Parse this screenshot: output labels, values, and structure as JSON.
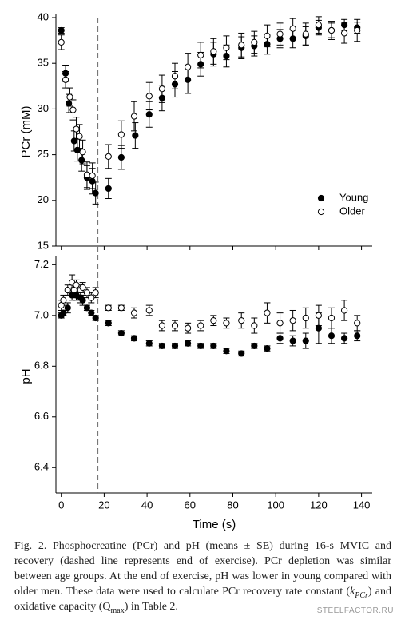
{
  "chart_data": [
    {
      "type": "scatter",
      "ylabel": "PCr (mM)",
      "ylim": [
        15,
        40
      ],
      "yticks": [
        15,
        20,
        25,
        30,
        35,
        40
      ],
      "xlim": [
        -2.5,
        145
      ],
      "vline": {
        "x": 17,
        "style": "dashed"
      },
      "legend": "center right",
      "series": [
        {
          "name": "Young",
          "color": "#000000",
          "marker": "filled",
          "x": [
            0,
            2,
            3.5,
            6,
            7.5,
            9.5,
            12,
            14.5,
            16,
            22,
            28,
            34.5,
            41,
            47,
            53,
            59,
            65,
            71,
            77,
            84,
            90,
            96,
            102,
            108,
            114,
            120,
            126,
            132,
            138
          ],
          "values": [
            38.6,
            33.9,
            30.6,
            26.5,
            25.5,
            24.4,
            22.5,
            22.1,
            20.8,
            21.3,
            24.7,
            27.1,
            29.4,
            31.2,
            32.7,
            33.2,
            34.9,
            36.0,
            35.8,
            36.7,
            36.9,
            37.1,
            37.7,
            37.7,
            38.0,
            38.9,
            38.6,
            39.2,
            38.9
          ],
          "errors": [
            0.3,
            0.9,
            1.0,
            1.1,
            1.2,
            1.2,
            1.3,
            1.4,
            1.2,
            1.1,
            1.3,
            1.4,
            1.4,
            1.4,
            1.4,
            1.5,
            1.3,
            1.3,
            1.2,
            1.2,
            1.1,
            1.1,
            1.0,
            1.0,
            1.0,
            0.8,
            0.8,
            0.6,
            0.6
          ]
        },
        {
          "name": "Older",
          "color": "#000000",
          "marker": "open",
          "x": [
            0,
            2,
            4,
            5.5,
            7,
            8.5,
            10,
            12,
            14.5,
            22,
            28,
            34,
            41,
            47,
            53,
            59,
            65,
            71,
            77,
            84,
            90,
            96,
            102,
            108,
            114,
            120,
            126,
            132,
            138
          ],
          "values": [
            37.3,
            33.2,
            31.3,
            29.9,
            27.8,
            27.0,
            25.3,
            22.8,
            22.7,
            24.8,
            27.2,
            29.2,
            31.4,
            32.2,
            33.6,
            34.6,
            35.9,
            36.3,
            36.7,
            37.0,
            37.3,
            38.0,
            38.2,
            38.8,
            38.2,
            39.2,
            38.6,
            38.3,
            38.6
          ],
          "errors": [
            0.8,
            0.9,
            1.0,
            1.1,
            1.3,
            1.3,
            1.3,
            1.4,
            1.4,
            1.3,
            1.5,
            1.6,
            1.5,
            1.5,
            1.4,
            1.5,
            1.4,
            1.4,
            1.3,
            1.3,
            1.2,
            1.2,
            1.2,
            1.1,
            1.2,
            0.9,
            1.0,
            1.1,
            1.2
          ]
        }
      ]
    },
    {
      "type": "scatter",
      "ylabel": "pH",
      "xlabel": "Time (s)",
      "ylim": [
        6.3,
        7.22
      ],
      "yticks": [
        6.4,
        6.6,
        6.8,
        {
          "value": 7,
          "label": "7.0"
        },
        7.2
      ],
      "xlim": [
        -2.5,
        145
      ],
      "xticks": [
        0,
        20,
        40,
        60,
        80,
        100,
        120,
        140
      ],
      "vline": {
        "x": 17,
        "style": "dashed"
      },
      "series": [
        {
          "name": "Young",
          "color": "#000000",
          "marker": "filled",
          "x": [
            0,
            1,
            3,
            5,
            6,
            7,
            9,
            10,
            12,
            14,
            16,
            22,
            28,
            34,
            41,
            47,
            53,
            59,
            65,
            71,
            77,
            84,
            90,
            96,
            102,
            108,
            114,
            120,
            126,
            132,
            138
          ],
          "values": [
            7.0,
            7.01,
            7.03,
            7.08,
            7.09,
            7.08,
            7.07,
            7.06,
            7.03,
            7.01,
            6.99,
            6.97,
            6.93,
            6.91,
            6.89,
            6.88,
            6.88,
            6.89,
            6.88,
            6.88,
            6.86,
            6.85,
            6.88,
            6.87,
            6.91,
            6.9,
            6.9,
            6.95,
            6.92,
            6.91,
            6.92
          ],
          "errors": [
            0.01,
            0.01,
            0.02,
            0.02,
            0.02,
            0.02,
            0.02,
            0.02,
            0.01,
            0.01,
            0.01,
            0.01,
            0.01,
            0.01,
            0.01,
            0.01,
            0.01,
            0.01,
            0.01,
            0.01,
            0.01,
            0.01,
            0.01,
            0.01,
            0.02,
            0.02,
            0.03,
            0.06,
            0.03,
            0.02,
            0.02
          ]
        },
        {
          "name": "Older",
          "color": "#000000",
          "marker": "open",
          "x": [
            0,
            1,
            3,
            5,
            6,
            7,
            9,
            10,
            12,
            14,
            16,
            22,
            28,
            34,
            41,
            47,
            53,
            59,
            65,
            71,
            77,
            84,
            90,
            96,
            102,
            108,
            114,
            120,
            126,
            132,
            138
          ],
          "values": [
            7.04,
            7.06,
            7.1,
            7.13,
            7.1,
            7.12,
            7.1,
            7.11,
            7.09,
            7.07,
            7.09,
            7.03,
            7.03,
            7.01,
            7.02,
            6.96,
            6.96,
            6.95,
            6.96,
            6.98,
            6.97,
            6.98,
            6.96,
            7.01,
            6.97,
            6.98,
            6.99,
            7.0,
            6.99,
            7.02,
            6.97
          ],
          "errors": [
            0.02,
            0.02,
            0.02,
            0.03,
            0.03,
            0.02,
            0.02,
            0.02,
            0.02,
            0.02,
            0.02,
            0.01,
            0.01,
            0.02,
            0.02,
            0.02,
            0.02,
            0.02,
            0.02,
            0.02,
            0.02,
            0.03,
            0.03,
            0.04,
            0.04,
            0.04,
            0.04,
            0.04,
            0.04,
            0.04,
            0.03
          ]
        }
      ]
    }
  ],
  "caption": [
    {
      "text": "Fig. 2. Phosphocreatine (PCr) and pH (means ± SE) during 16-s MVIC and recovery (dashed line represents end of exercise). PCr depletion was similar between age groups. At the end of exercise, pH was lower in young compared with older men. These data were used to calculate PCr recovery rate constant ("
    },
    {
      "text": "k",
      "italic": true
    },
    {
      "text": "PCr",
      "italic": true,
      "sub": true
    },
    {
      "text": ") and oxidative capacity (Q"
    },
    {
      "text": "max",
      "sub": true
    },
    {
      "text": ") in Table 2."
    }
  ],
  "watermark": "STEELFACTOR.RU"
}
